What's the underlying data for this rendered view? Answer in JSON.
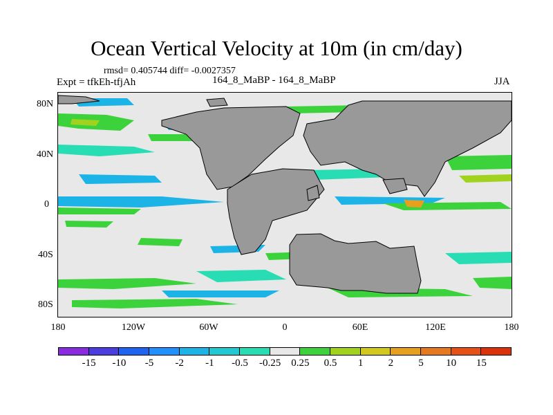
{
  "title": "Ocean Vertical Velocity at 10m (in cm/day)",
  "stats": "rmsd= 0.405744 diff= -0.0027357",
  "experiment": "Expt = tfkEh-tfjAh",
  "case_label": "164_8_MaBP - 164_8_MaBP",
  "season": "JJA",
  "lat_labels": [
    "80N",
    "40N",
    "0",
    "40S",
    "80S"
  ],
  "lon_labels": [
    "180",
    "120W",
    "60W",
    "0",
    "60E",
    "120E",
    "180"
  ],
  "colorbar": {
    "labels": [
      "-15",
      "-10",
      "-5",
      "-2",
      "-1",
      "-0.5",
      "-0.25",
      "0.25",
      "0.5",
      "1",
      "2",
      "5",
      "10",
      "15"
    ],
    "colors": [
      "#8a2be2",
      "#4b3de0",
      "#1e64f0",
      "#1e90ff",
      "#1cb4e6",
      "#22c8d2",
      "#28dcb4",
      "#e8e8e8",
      "#3cd23c",
      "#a0d21e",
      "#d2c81e",
      "#e6a01e",
      "#e6781e",
      "#e65014",
      "#dc320a"
    ]
  },
  "land_color": "#999999"
}
